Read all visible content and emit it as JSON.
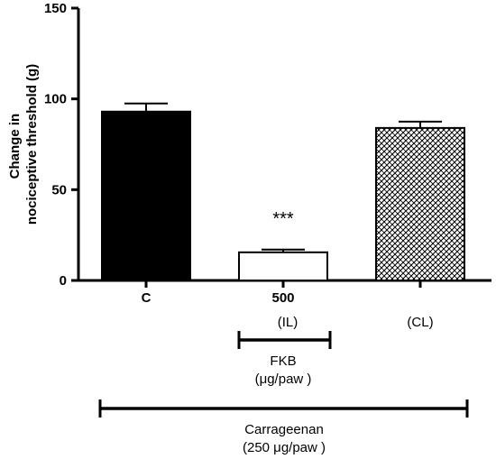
{
  "chart_data": {
    "type": "bar",
    "ylabel_lines": [
      "Change in",
      "nociceptive threshold (g)"
    ],
    "ylim": [
      0,
      150
    ],
    "yticks": [
      0,
      50,
      100,
      150
    ],
    "categories": [
      "C",
      "500",
      ""
    ],
    "values": [
      93,
      15.5,
      84
    ],
    "errors": [
      4.5,
      1.5,
      3.5
    ],
    "bar_styles": [
      "solid-black",
      "white",
      "crosshatch"
    ],
    "annotations": [
      {
        "bar_index": 1,
        "text": "***"
      }
    ],
    "group_labels": [
      {
        "bar_index": 1,
        "text": "(IL)"
      },
      {
        "bar_index": 2,
        "text": "(CL)"
      }
    ]
  },
  "treatments": {
    "fkb": {
      "line1": "FKB",
      "line2": "(μg/paw )"
    },
    "carrageenan": {
      "line1": "Carrageenan",
      "line2": "(250 μg/paw )"
    }
  }
}
